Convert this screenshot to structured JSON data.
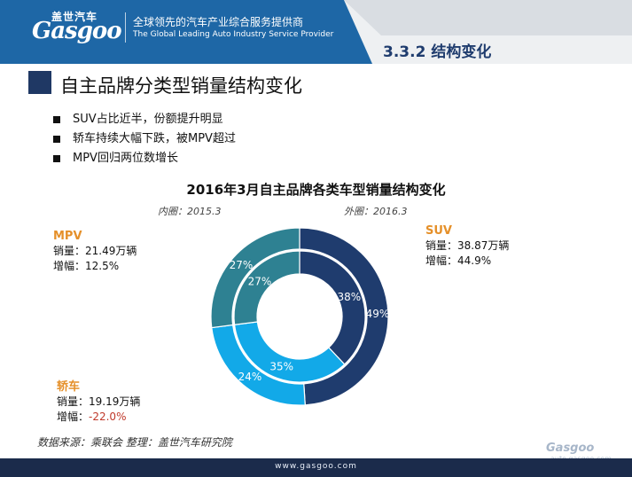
{
  "header": {
    "logo_cn": "盖世汽车",
    "logo_en": "Gasgoo",
    "tagline_cn": "全球领先的汽车产业综合服务提供商",
    "tagline_en": "The Global Leading Auto Industry Service Provider",
    "section": "3.3.2  结构变化"
  },
  "slide_title": "自主品牌分类型销量结构变化",
  "bullets": [
    "SUV占比近半，份额提升明显",
    "轿车持续大幅下跌，被MPV超过",
    "MPV回归两位数增长"
  ],
  "chart_data": {
    "type": "pie",
    "title": "2016年3月自主品牌各类车型销量结构变化",
    "inner_label": "内圈：2015.3",
    "outer_label": "外圈：2016.3",
    "categories": [
      "SUV",
      "轿车",
      "MPV"
    ],
    "colors": [
      "#1f3c6e",
      "#12a9e8",
      "#2e8192"
    ],
    "series": [
      {
        "name": "2015.3",
        "ring": "inner",
        "values": [
          38,
          35,
          27
        ],
        "labels": [
          "38%",
          "35%",
          "27%"
        ]
      },
      {
        "name": "2016.3",
        "ring": "outer",
        "values": [
          49,
          24,
          27
        ],
        "labels": [
          "49%",
          "24%",
          "27%"
        ]
      }
    ],
    "annotations": [
      {
        "name": "SUV",
        "sales_label": "销量：",
        "sales": "38.87万辆",
        "growth_label": "增幅：",
        "growth": "44.9%"
      },
      {
        "name": "轿车",
        "sales_label": "销量：",
        "sales": "19.19万辆",
        "growth_label": "增幅：",
        "growth": "-22.0%"
      },
      {
        "name": "MPV",
        "sales_label": "销量：",
        "sales": "21.49万辆",
        "growth_label": "增幅：",
        "growth": "12.5%"
      }
    ]
  },
  "source": "数据来源：乘联会    整理：盖世汽车研究院",
  "footer_url": "www.gasgoo.com",
  "watermark": {
    "text": "Gasgoo",
    "cn": "盖世汽车资讯",
    "url": "auto.gasgoo.com"
  }
}
